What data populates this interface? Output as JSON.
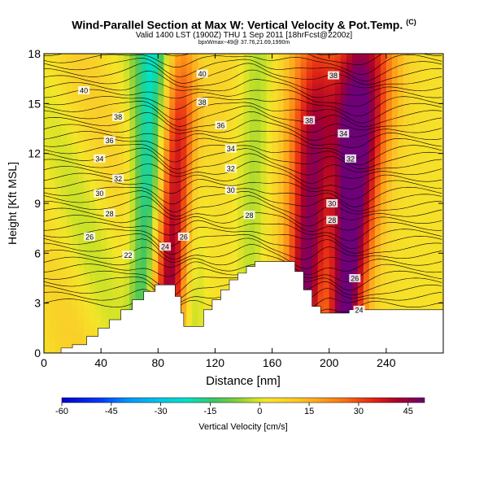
{
  "header": {
    "title": "Wind-Parallel Section at Max W: Vertical Velocity & Pot.Temp.",
    "copyright": "(C)",
    "subtitle": "Valid 1400 LST (1900Z) THU 1 Sep 2011 [18hrFcst@2200z]",
    "subsubtitle": "bpxWmax~49@ 37.76,21.69,1990m"
  },
  "chart_data": {
    "type": "heatmap",
    "xlabel": "Distance [nm]",
    "ylabel": "Height [Kft MSL]",
    "xlim": [
      0,
      280
    ],
    "ylim": [
      0,
      18
    ],
    "xticks": [
      "0",
      "40",
      "80",
      "120",
      "160",
      "200",
      "240"
    ],
    "yticks": [
      "0",
      "3",
      "6",
      "9",
      "12",
      "15",
      "18"
    ],
    "colorbar": {
      "label": "Vertical Velocity [cm/s]",
      "min": -60,
      "max": 50,
      "ticks": [
        "-60",
        "-45",
        "-30",
        "-15",
        "0",
        "15",
        "30",
        "45"
      ]
    },
    "updrafts": [
      {
        "x": 90,
        "peak": 42
      },
      {
        "x": 186,
        "peak": 45
      },
      {
        "x": 214,
        "peak": 49
      }
    ],
    "downdrafts": [
      {
        "x": 72,
        "peak": -35
      },
      {
        "x": 104,
        "peak": -20
      },
      {
        "x": 145,
        "peak": -8
      },
      {
        "x": 198,
        "peak": -18
      }
    ],
    "terrain": [
      [
        0,
        0
      ],
      [
        12,
        0.3
      ],
      [
        20,
        0.5
      ],
      [
        30,
        1.0
      ],
      [
        38,
        1.5
      ],
      [
        46,
        2.0
      ],
      [
        54,
        2.6
      ],
      [
        62,
        3.2
      ],
      [
        70,
        3.7
      ],
      [
        78,
        4.1
      ],
      [
        86,
        4.1
      ],
      [
        92,
        3.4
      ],
      [
        96,
        2.4
      ],
      [
        98,
        1.6
      ],
      [
        104,
        1.6
      ],
      [
        112,
        2.6
      ],
      [
        118,
        3.2
      ],
      [
        124,
        3.8
      ],
      [
        130,
        4.4
      ],
      [
        136,
        4.8
      ],
      [
        142,
        5.2
      ],
      [
        148,
        5.5
      ],
      [
        170,
        5.5
      ],
      [
        176,
        4.9
      ],
      [
        182,
        3.8
      ],
      [
        188,
        2.8
      ],
      [
        194,
        2.4
      ],
      [
        208,
        2.4
      ],
      [
        214,
        2.6
      ],
      [
        280,
        2.6
      ]
    ],
    "theta_labels": [
      {
        "text": "40",
        "x": 28,
        "y": 15.8
      },
      {
        "text": "40",
        "x": 111,
        "y": 16.8
      },
      {
        "text": "38",
        "x": 52,
        "y": 14.2
      },
      {
        "text": "38",
        "x": 111,
        "y": 15.1
      },
      {
        "text": "38",
        "x": 203,
        "y": 16.7
      },
      {
        "text": "38",
        "x": 186,
        "y": 14.0
      },
      {
        "text": "36",
        "x": 46,
        "y": 12.8
      },
      {
        "text": "36",
        "x": 124,
        "y": 13.7
      },
      {
        "text": "34",
        "x": 39,
        "y": 11.7
      },
      {
        "text": "34",
        "x": 131,
        "y": 12.3
      },
      {
        "text": "34",
        "x": 210,
        "y": 13.2
      },
      {
        "text": "32",
        "x": 52,
        "y": 10.5
      },
      {
        "text": "32",
        "x": 131,
        "y": 11.1
      },
      {
        "text": "32",
        "x": 215,
        "y": 11.7
      },
      {
        "text": "30",
        "x": 39,
        "y": 9.6
      },
      {
        "text": "30",
        "x": 131,
        "y": 9.8
      },
      {
        "text": "30",
        "x": 202,
        "y": 9.0
      },
      {
        "text": "28",
        "x": 46,
        "y": 8.4
      },
      {
        "text": "28",
        "x": 144,
        "y": 8.3
      },
      {
        "text": "28",
        "x": 202,
        "y": 8.0
      },
      {
        "text": "26",
        "x": 32,
        "y": 7.0
      },
      {
        "text": "26",
        "x": 98,
        "y": 7.0
      },
      {
        "text": "24",
        "x": 85,
        "y": 6.4
      },
      {
        "text": "22",
        "x": 59,
        "y": 5.9
      },
      {
        "text": "26",
        "x": 218,
        "y": 4.5
      },
      {
        "text": "24",
        "x": 221,
        "y": 2.6
      }
    ]
  }
}
